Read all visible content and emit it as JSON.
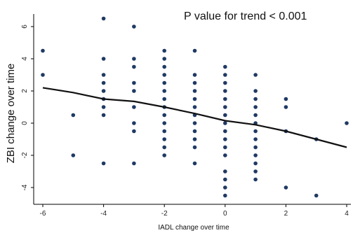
{
  "chart_data": {
    "type": "scatter",
    "title": "",
    "xlabel": "IADL change over time",
    "ylabel": "ZBI change over time",
    "annotation": "P value for trend < 0.001",
    "xlim": [
      -6.2,
      4.2
    ],
    "ylim": [
      -4.8,
      6.8
    ],
    "x_ticks": [
      -6,
      -4,
      -2,
      0,
      2,
      4
    ],
    "y_ticks": [
      -4,
      -2,
      0,
      2,
      4,
      6
    ],
    "grid": false,
    "legend": "none",
    "point_color": "#1f3a63",
    "line_color": "#111111",
    "series": [
      {
        "kind": "points",
        "points": [
          [
            -6,
            4.5
          ],
          [
            -6,
            3
          ],
          [
            -5,
            0.5
          ],
          [
            -5,
            -2
          ],
          [
            -4,
            6.5
          ],
          [
            -4,
            4
          ],
          [
            -4,
            3
          ],
          [
            -4,
            2.5
          ],
          [
            -4,
            2
          ],
          [
            -4,
            1.5
          ],
          [
            -4,
            1
          ],
          [
            -4,
            0.5
          ],
          [
            -4,
            -2.5
          ],
          [
            -3,
            6
          ],
          [
            -3,
            4
          ],
          [
            -3,
            3.5
          ],
          [
            -3,
            2.5
          ],
          [
            -3,
            2
          ],
          [
            -3,
            1
          ],
          [
            -3,
            0
          ],
          [
            -3,
            -0.5
          ],
          [
            -3,
            -2.5
          ],
          [
            -2,
            4.5
          ],
          [
            -2,
            4
          ],
          [
            -2,
            3.5
          ],
          [
            -2,
            3
          ],
          [
            -2,
            2.5
          ],
          [
            -2,
            2
          ],
          [
            -2,
            1.5
          ],
          [
            -2,
            1
          ],
          [
            -2,
            0.5
          ],
          [
            -2,
            0
          ],
          [
            -2,
            -0.5
          ],
          [
            -2,
            -1
          ],
          [
            -2,
            -1.5
          ],
          [
            -2,
            -2
          ],
          [
            -1,
            4.5
          ],
          [
            -1,
            3
          ],
          [
            -1,
            2.5
          ],
          [
            -1,
            2
          ],
          [
            -1,
            1.5
          ],
          [
            -1,
            1
          ],
          [
            -1,
            0.5
          ],
          [
            -1,
            0
          ],
          [
            -1,
            -0.5
          ],
          [
            -1,
            -1
          ],
          [
            -1,
            -1.5
          ],
          [
            -1,
            -2.5
          ],
          [
            0,
            3.5
          ],
          [
            0,
            3
          ],
          [
            0,
            2.5
          ],
          [
            0,
            2
          ],
          [
            0,
            1.5
          ],
          [
            0,
            1
          ],
          [
            0,
            0.5
          ],
          [
            0,
            0
          ],
          [
            0,
            -0.5
          ],
          [
            0,
            -1
          ],
          [
            0,
            -1.5
          ],
          [
            0,
            -2
          ],
          [
            0,
            -3
          ],
          [
            0,
            -3.5
          ],
          [
            0,
            -4
          ],
          [
            0,
            -4.5
          ],
          [
            1,
            3
          ],
          [
            1,
            2
          ],
          [
            1,
            1.5
          ],
          [
            1,
            1
          ],
          [
            1,
            0.5
          ],
          [
            1,
            0
          ],
          [
            1,
            -0.5
          ],
          [
            1,
            -1
          ],
          [
            1,
            -1.5
          ],
          [
            1,
            -2
          ],
          [
            1,
            -2.5
          ],
          [
            1,
            -3
          ],
          [
            1,
            -3.5
          ],
          [
            2,
            1.5
          ],
          [
            2,
            1
          ],
          [
            2,
            -0.5
          ],
          [
            2,
            -4
          ],
          [
            3,
            -1
          ],
          [
            3,
            -4.5
          ],
          [
            4,
            0
          ]
        ]
      },
      {
        "kind": "trend",
        "points": [
          [
            -6,
            2.2
          ],
          [
            -5,
            1.9
          ],
          [
            -4,
            1.5
          ],
          [
            -3,
            1.35
          ],
          [
            -2,
            1.0
          ],
          [
            -1,
            0.6
          ],
          [
            0,
            0.15
          ],
          [
            1,
            -0.1
          ],
          [
            2,
            -0.5
          ],
          [
            3,
            -1.0
          ],
          [
            4,
            -1.5
          ]
        ]
      }
    ]
  }
}
